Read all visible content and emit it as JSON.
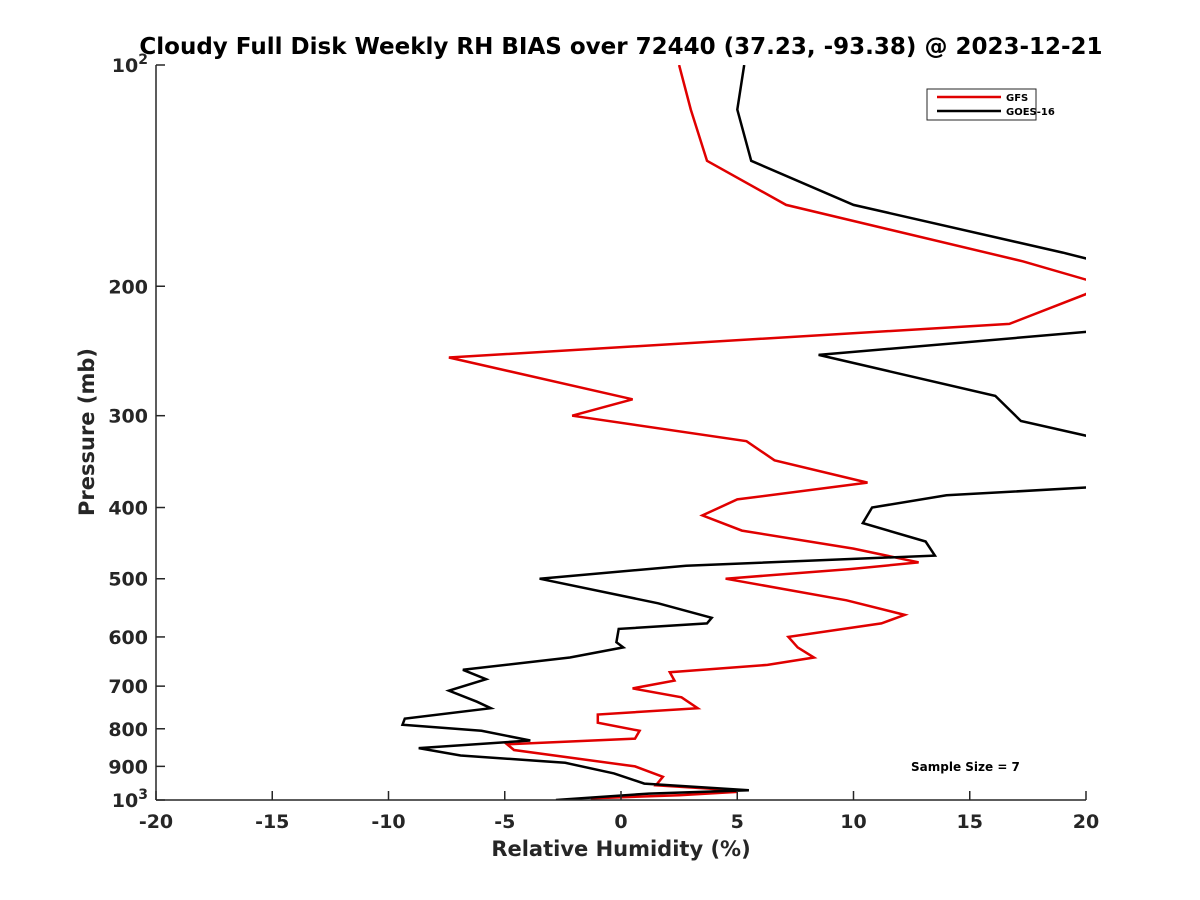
{
  "chart_data": {
    "type": "line",
    "title": "Cloudy Full Disk Weekly RH BIAS over 72440 (37.23, -93.38) @ 2023-12-21",
    "xlabel": "Relative Humidity (%)",
    "ylabel": "Pressure (mb)",
    "xlim": [
      -20,
      20
    ],
    "ylim": [
      1000,
      100
    ],
    "yscale": "log",
    "y_reversed": true,
    "grid": false,
    "legend_position": "top-right",
    "x_ticks": [
      -20,
      -15,
      -10,
      -5,
      0,
      5,
      10,
      15,
      20
    ],
    "x_tick_labels": [
      "-20",
      "-15",
      "-10",
      "-5",
      "0",
      "5",
      "10",
      "15",
      "20"
    ],
    "y_ticks": [
      100,
      200,
      300,
      400,
      500,
      600,
      700,
      800,
      900,
      1000
    ],
    "y_tick_labels": [
      {
        "base": "10",
        "exp": "2"
      },
      {
        "base": "200",
        "exp": ""
      },
      {
        "base": "300",
        "exp": ""
      },
      {
        "base": "400",
        "exp": ""
      },
      {
        "base": "500",
        "exp": ""
      },
      {
        "base": "600",
        "exp": ""
      },
      {
        "base": "700",
        "exp": ""
      },
      {
        "base": "800",
        "exp": ""
      },
      {
        "base": "900",
        "exp": ""
      },
      {
        "base": "10",
        "exp": "3"
      }
    ],
    "annotation": "Sample Size = 7",
    "series": [
      {
        "name": "GFS",
        "color": "#e00000",
        "points": [
          {
            "x": 2.5,
            "p": 100
          },
          {
            "x": 3.0,
            "p": 115
          },
          {
            "x": 3.7,
            "p": 135
          },
          {
            "x": 7.1,
            "p": 155
          },
          {
            "x": 17.3,
            "p": 185
          },
          {
            "x": 20.5,
            "p": 198
          },
          {
            "x": 20.0,
            "p": 205
          },
          {
            "x": 16.7,
            "p": 225
          },
          {
            "x": -7.4,
            "p": 250
          },
          {
            "x": 0.5,
            "p": 285
          },
          {
            "x": -2.1,
            "p": 300
          },
          {
            "x": 5.4,
            "p": 325
          },
          {
            "x": 6.6,
            "p": 345
          },
          {
            "x": 10.6,
            "p": 370
          },
          {
            "x": 5.0,
            "p": 390
          },
          {
            "x": 3.5,
            "p": 410
          },
          {
            "x": 5.2,
            "p": 430
          },
          {
            "x": 10.0,
            "p": 455
          },
          {
            "x": 12.8,
            "p": 475
          },
          {
            "x": 9.9,
            "p": 485
          },
          {
            "x": 4.5,
            "p": 500
          },
          {
            "x": 9.7,
            "p": 535
          },
          {
            "x": 12.2,
            "p": 560
          },
          {
            "x": 11.2,
            "p": 575
          },
          {
            "x": 7.2,
            "p": 600
          },
          {
            "x": 7.6,
            "p": 620
          },
          {
            "x": 8.3,
            "p": 640
          },
          {
            "x": 6.3,
            "p": 655
          },
          {
            "x": 2.1,
            "p": 670
          },
          {
            "x": 2.3,
            "p": 688
          },
          {
            "x": 0.5,
            "p": 705
          },
          {
            "x": 2.6,
            "p": 725
          },
          {
            "x": 3.3,
            "p": 750
          },
          {
            "x": -1.0,
            "p": 765
          },
          {
            "x": -1.0,
            "p": 785
          },
          {
            "x": 0.8,
            "p": 805
          },
          {
            "x": 0.6,
            "p": 825
          },
          {
            "x": -4.9,
            "p": 840
          },
          {
            "x": -4.6,
            "p": 855
          },
          {
            "x": 0.6,
            "p": 900
          },
          {
            "x": 1.8,
            "p": 930
          },
          {
            "x": 1.5,
            "p": 955
          },
          {
            "x": 3.8,
            "p": 965
          },
          {
            "x": 5.0,
            "p": 975
          },
          {
            "x": 2.5,
            "p": 985
          },
          {
            "x": -1.3,
            "p": 995
          }
        ]
      },
      {
        "name": "GOES-16",
        "color": "#000000",
        "points": [
          {
            "x": 5.3,
            "p": 100
          },
          {
            "x": 5.0,
            "p": 115
          },
          {
            "x": 5.6,
            "p": 135
          },
          {
            "x": 10.0,
            "p": 155
          },
          {
            "x": 19.0,
            "p": 180
          },
          {
            "x": 20.5,
            "p": 185
          },
          {
            "x": 20.5,
            "p": 230
          },
          {
            "x": 8.5,
            "p": 248
          },
          {
            "x": 16.1,
            "p": 282
          },
          {
            "x": 17.2,
            "p": 305
          },
          {
            "x": 20.5,
            "p": 322
          },
          {
            "x": 20.5,
            "p": 375
          },
          {
            "x": 14.0,
            "p": 385
          },
          {
            "x": 10.8,
            "p": 400
          },
          {
            "x": 10.4,
            "p": 420
          },
          {
            "x": 13.1,
            "p": 445
          },
          {
            "x": 13.5,
            "p": 465
          },
          {
            "x": 2.8,
            "p": 480
          },
          {
            "x": -3.5,
            "p": 500
          },
          {
            "x": 1.6,
            "p": 540
          },
          {
            "x": 3.9,
            "p": 565
          },
          {
            "x": 3.7,
            "p": 575
          },
          {
            "x": -0.1,
            "p": 585
          },
          {
            "x": -0.2,
            "p": 610
          },
          {
            "x": 0.1,
            "p": 620
          },
          {
            "x": -2.2,
            "p": 640
          },
          {
            "x": -6.8,
            "p": 665
          },
          {
            "x": -5.8,
            "p": 685
          },
          {
            "x": -7.4,
            "p": 710
          },
          {
            "x": -6.2,
            "p": 735
          },
          {
            "x": -5.6,
            "p": 750
          },
          {
            "x": -9.3,
            "p": 775
          },
          {
            "x": -9.4,
            "p": 790
          },
          {
            "x": -6.0,
            "p": 805
          },
          {
            "x": -3.9,
            "p": 830
          },
          {
            "x": -8.7,
            "p": 850
          },
          {
            "x": -6.9,
            "p": 870
          },
          {
            "x": -2.4,
            "p": 890
          },
          {
            "x": -0.3,
            "p": 920
          },
          {
            "x": 1.0,
            "p": 950
          },
          {
            "x": 5.5,
            "p": 970
          },
          {
            "x": 1.2,
            "p": 980
          },
          {
            "x": -2.8,
            "p": 1000
          }
        ]
      }
    ]
  }
}
